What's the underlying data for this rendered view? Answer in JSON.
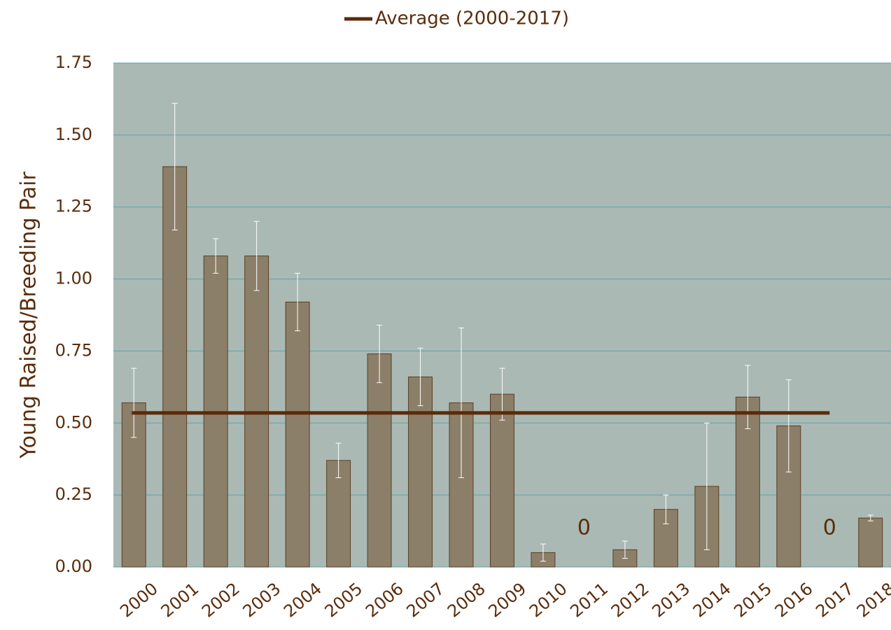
{
  "chart_data": {
    "type": "bar",
    "y_label": "Young Raised/Breeding Pair",
    "categories": [
      "2000",
      "2001",
      "2002",
      "2003",
      "2004",
      "2005",
      "2006",
      "2007",
      "2008",
      "2009",
      "2010",
      "2011",
      "2012",
      "2013",
      "2014",
      "2015",
      "2016",
      "2017",
      "2018"
    ],
    "series": [
      {
        "color": "#8c7f69",
        "values": [
          0.57,
          1.39,
          1.08,
          1.08,
          0.92,
          0.37,
          0.74,
          0.66,
          0.57,
          0.6,
          0.05,
          0,
          0.06,
          0.2,
          0.28,
          0.59,
          0.49,
          0,
          0.17
        ],
        "errors": [
          0.12,
          0.22,
          0.06,
          0.12,
          0.1,
          0.06,
          0.1,
          0.1,
          0.26,
          0.09,
          0.03,
          0,
          0.03,
          0.05,
          0.22,
          0.11,
          0.16,
          0,
          0.01
        ]
      },
      {
        "type": "line",
        "name": "Average (2000-2017)",
        "color": "#5a2a08",
        "values": [
          0.535,
          0.535,
          0.535,
          0.535,
          0.535,
          0.535,
          0.535,
          0.535,
          0.535,
          0.535,
          0.535,
          0.535,
          0.535,
          0.535,
          0.535,
          0.535,
          0.535,
          0.535,
          null
        ]
      }
    ],
    "ylim": [
      0,
      1.75
    ],
    "yticks": [
      {
        "value": 0,
        "label": "0.00"
      },
      {
        "value": 0.25,
        "label": "0.25"
      },
      {
        "value": 0.5,
        "label": "0.50"
      },
      {
        "value": 0.75,
        "label": "0.75"
      },
      {
        "value": 1,
        "label": "1.00"
      },
      {
        "value": 1.25,
        "label": "1.25"
      },
      {
        "value": 1.5,
        "label": "1.50"
      },
      {
        "value": 1.75,
        "label": "1.75"
      }
    ],
    "grid": true,
    "legend": "top",
    "plot_color": "#aab9b4",
    "grid_color": "#5fa2a6"
  }
}
